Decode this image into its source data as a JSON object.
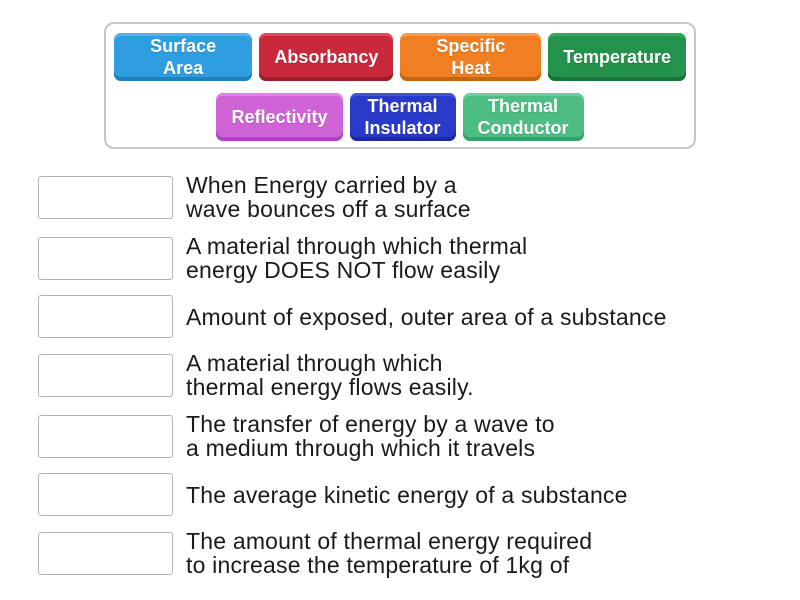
{
  "word_bank": {
    "rows": [
      [
        {
          "label": "Surface Area",
          "color": "#2f9ee0",
          "color_light": "#54b0e7",
          "color_dark": "#1f82bd"
        },
        {
          "label": "Absorbancy",
          "color": "#c9293b",
          "color_light": "#dd4b5c",
          "color_dark": "#9c1e2d"
        },
        {
          "label": "Specific Heat",
          "color": "#ef7f22",
          "color_light": "#f49c52",
          "color_dark": "#c4650f"
        },
        {
          "label": "Temperature",
          "color": "#24914c",
          "color_light": "#33a85c",
          "color_dark": "#187239"
        }
      ],
      [
        {
          "label": "Reflectivity",
          "color": "#ce63d6",
          "color_light": "#dc85e2",
          "color_dark": "#ae47be"
        },
        {
          "label": "Thermal\nInsulator",
          "color": "#2a3ac8",
          "color_light": "#4455d4",
          "color_dark": "#1b2a9e"
        },
        {
          "label": "Thermal\nConductor",
          "color": "#4ebd84",
          "color_light": "#72cba0",
          "color_dark": "#379f69"
        }
      ]
    ]
  },
  "matches": [
    {
      "definition": "When Energy carried by a\nwave bounces off a surface"
    },
    {
      "definition": "A material through which thermal\nenergy DOES NOT flow easily"
    },
    {
      "definition": "Amount of exposed, outer area of a substance"
    },
    {
      "definition": "A material through which\nthermal energy flows easily."
    },
    {
      "definition": "The transfer of energy by a wave to\na medium through which it travels"
    },
    {
      "definition": "The average kinetic energy of a substance"
    },
    {
      "definition": "The amount of thermal energy required\nto increase the temperature of 1kg of"
    }
  ]
}
